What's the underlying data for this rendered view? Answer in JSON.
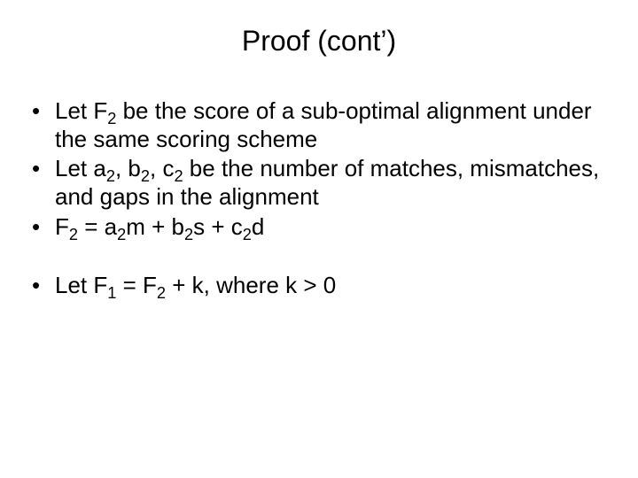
{
  "slide": {
    "title": "Proof (cont’)",
    "background_color": "#ffffff",
    "text_color": "#000000",
    "title_fontsize": 32,
    "body_fontsize": 26,
    "font_family": "Arial",
    "bullets": [
      {
        "segments": [
          {
            "t": "Let F"
          },
          {
            "t": "2",
            "sub": true
          },
          {
            "t": " be the score of a sub-optimal alignment under the same scoring scheme"
          }
        ]
      },
      {
        "segments": [
          {
            "t": "Let a"
          },
          {
            "t": "2",
            "sub": true
          },
          {
            "t": ", b"
          },
          {
            "t": "2",
            "sub": true
          },
          {
            "t": ", c"
          },
          {
            "t": "2",
            "sub": true
          },
          {
            "t": " be the number of matches, mismatches, and gaps in the alignment"
          }
        ]
      },
      {
        "segments": [
          {
            "t": "F"
          },
          {
            "t": "2",
            "sub": true
          },
          {
            "t": " = a"
          },
          {
            "t": "2",
            "sub": true
          },
          {
            "t": "m + b"
          },
          {
            "t": "2",
            "sub": true
          },
          {
            "t": "s + c"
          },
          {
            "t": "2",
            "sub": true
          },
          {
            "t": "d"
          }
        ]
      },
      {
        "gap_before": true,
        "segments": [
          {
            "t": "Let F"
          },
          {
            "t": "1",
            "sub": true
          },
          {
            "t": " = F"
          },
          {
            "t": "2",
            "sub": true
          },
          {
            "t": " + k, where k > 0"
          }
        ]
      }
    ]
  }
}
